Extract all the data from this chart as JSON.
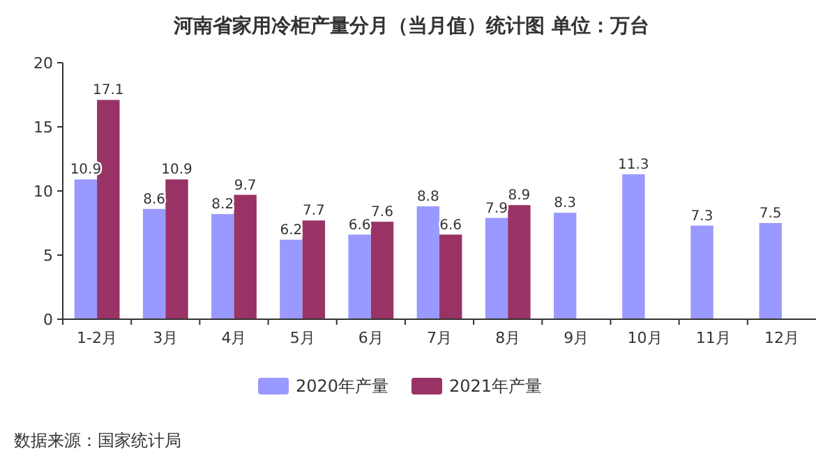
{
  "chart_data": {
    "type": "bar",
    "title": "河南省家用冷柜产量分月（当月值）统计图 单位：万台",
    "categories": [
      "1-2月",
      "3月",
      "4月",
      "5月",
      "6月",
      "7月",
      "8月",
      "9月",
      "10月",
      "11月",
      "12月"
    ],
    "series": [
      {
        "name": "2020年产量",
        "color": "#9999ff",
        "values": [
          10.9,
          8.6,
          8.2,
          6.2,
          6.6,
          8.8,
          7.9,
          8.3,
          11.3,
          7.3,
          7.5
        ]
      },
      {
        "name": "2021年产量",
        "color": "#993366",
        "values": [
          17.1,
          10.9,
          9.7,
          7.7,
          7.6,
          6.6,
          8.9,
          null,
          null,
          null,
          null
        ]
      }
    ],
    "ylim": [
      0,
      20
    ],
    "yticks": [
      0,
      5,
      10,
      15,
      20
    ],
    "data_labels": true,
    "legend": "bottom",
    "grid": false,
    "annotations": [
      "数据来源：国家统计局"
    ]
  }
}
